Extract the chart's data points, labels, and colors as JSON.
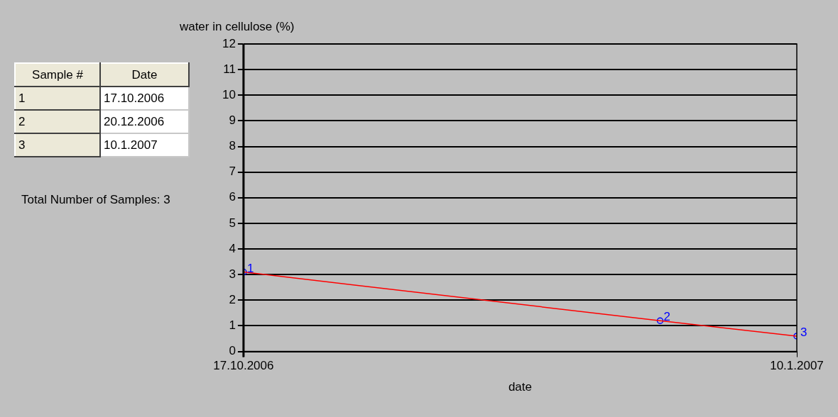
{
  "chart_data": {
    "type": "line",
    "xlabel": "date",
    "ylabel": "water in cellulose (%)",
    "x": [
      "2006-10-17",
      "2006-12-20",
      "2007-01-10"
    ],
    "series": [
      {
        "color": "#ff0000",
        "values": [
          3.1,
          1.2,
          0.6
        ],
        "marker": "none"
      },
      {
        "type": "scatter",
        "color": "#0000ff",
        "values": [
          3.1,
          1.2,
          0.6
        ],
        "marker": "circle"
      }
    ],
    "xlim": [
      "2006-10-17",
      "2007-01-10"
    ],
    "xticks": [
      {
        "value": "2006-10-17",
        "label": "17.10.2006"
      },
      {
        "value": "2007-01-10",
        "label": "10.1.2007"
      }
    ],
    "ylim": [
      0,
      12
    ],
    "yticks": [
      0,
      1,
      2,
      3,
      4,
      5,
      6,
      7,
      8,
      9,
      10,
      11,
      12
    ],
    "grid": "y",
    "legend": false,
    "annotations": [
      "Sample #",
      "Date",
      "1",
      "17.10.2006",
      "2",
      "20.12.2006",
      "3",
      "10.1.2007",
      "Total Number of Samples: 3",
      {
        "text": "1",
        "x": "2006-10-17",
        "y": 3.1
      },
      {
        "text": "2",
        "x": "2006-12-20",
        "y": 1.2
      },
      {
        "text": "3",
        "x": "2007-01-10",
        "y": 0.6
      }
    ]
  }
}
